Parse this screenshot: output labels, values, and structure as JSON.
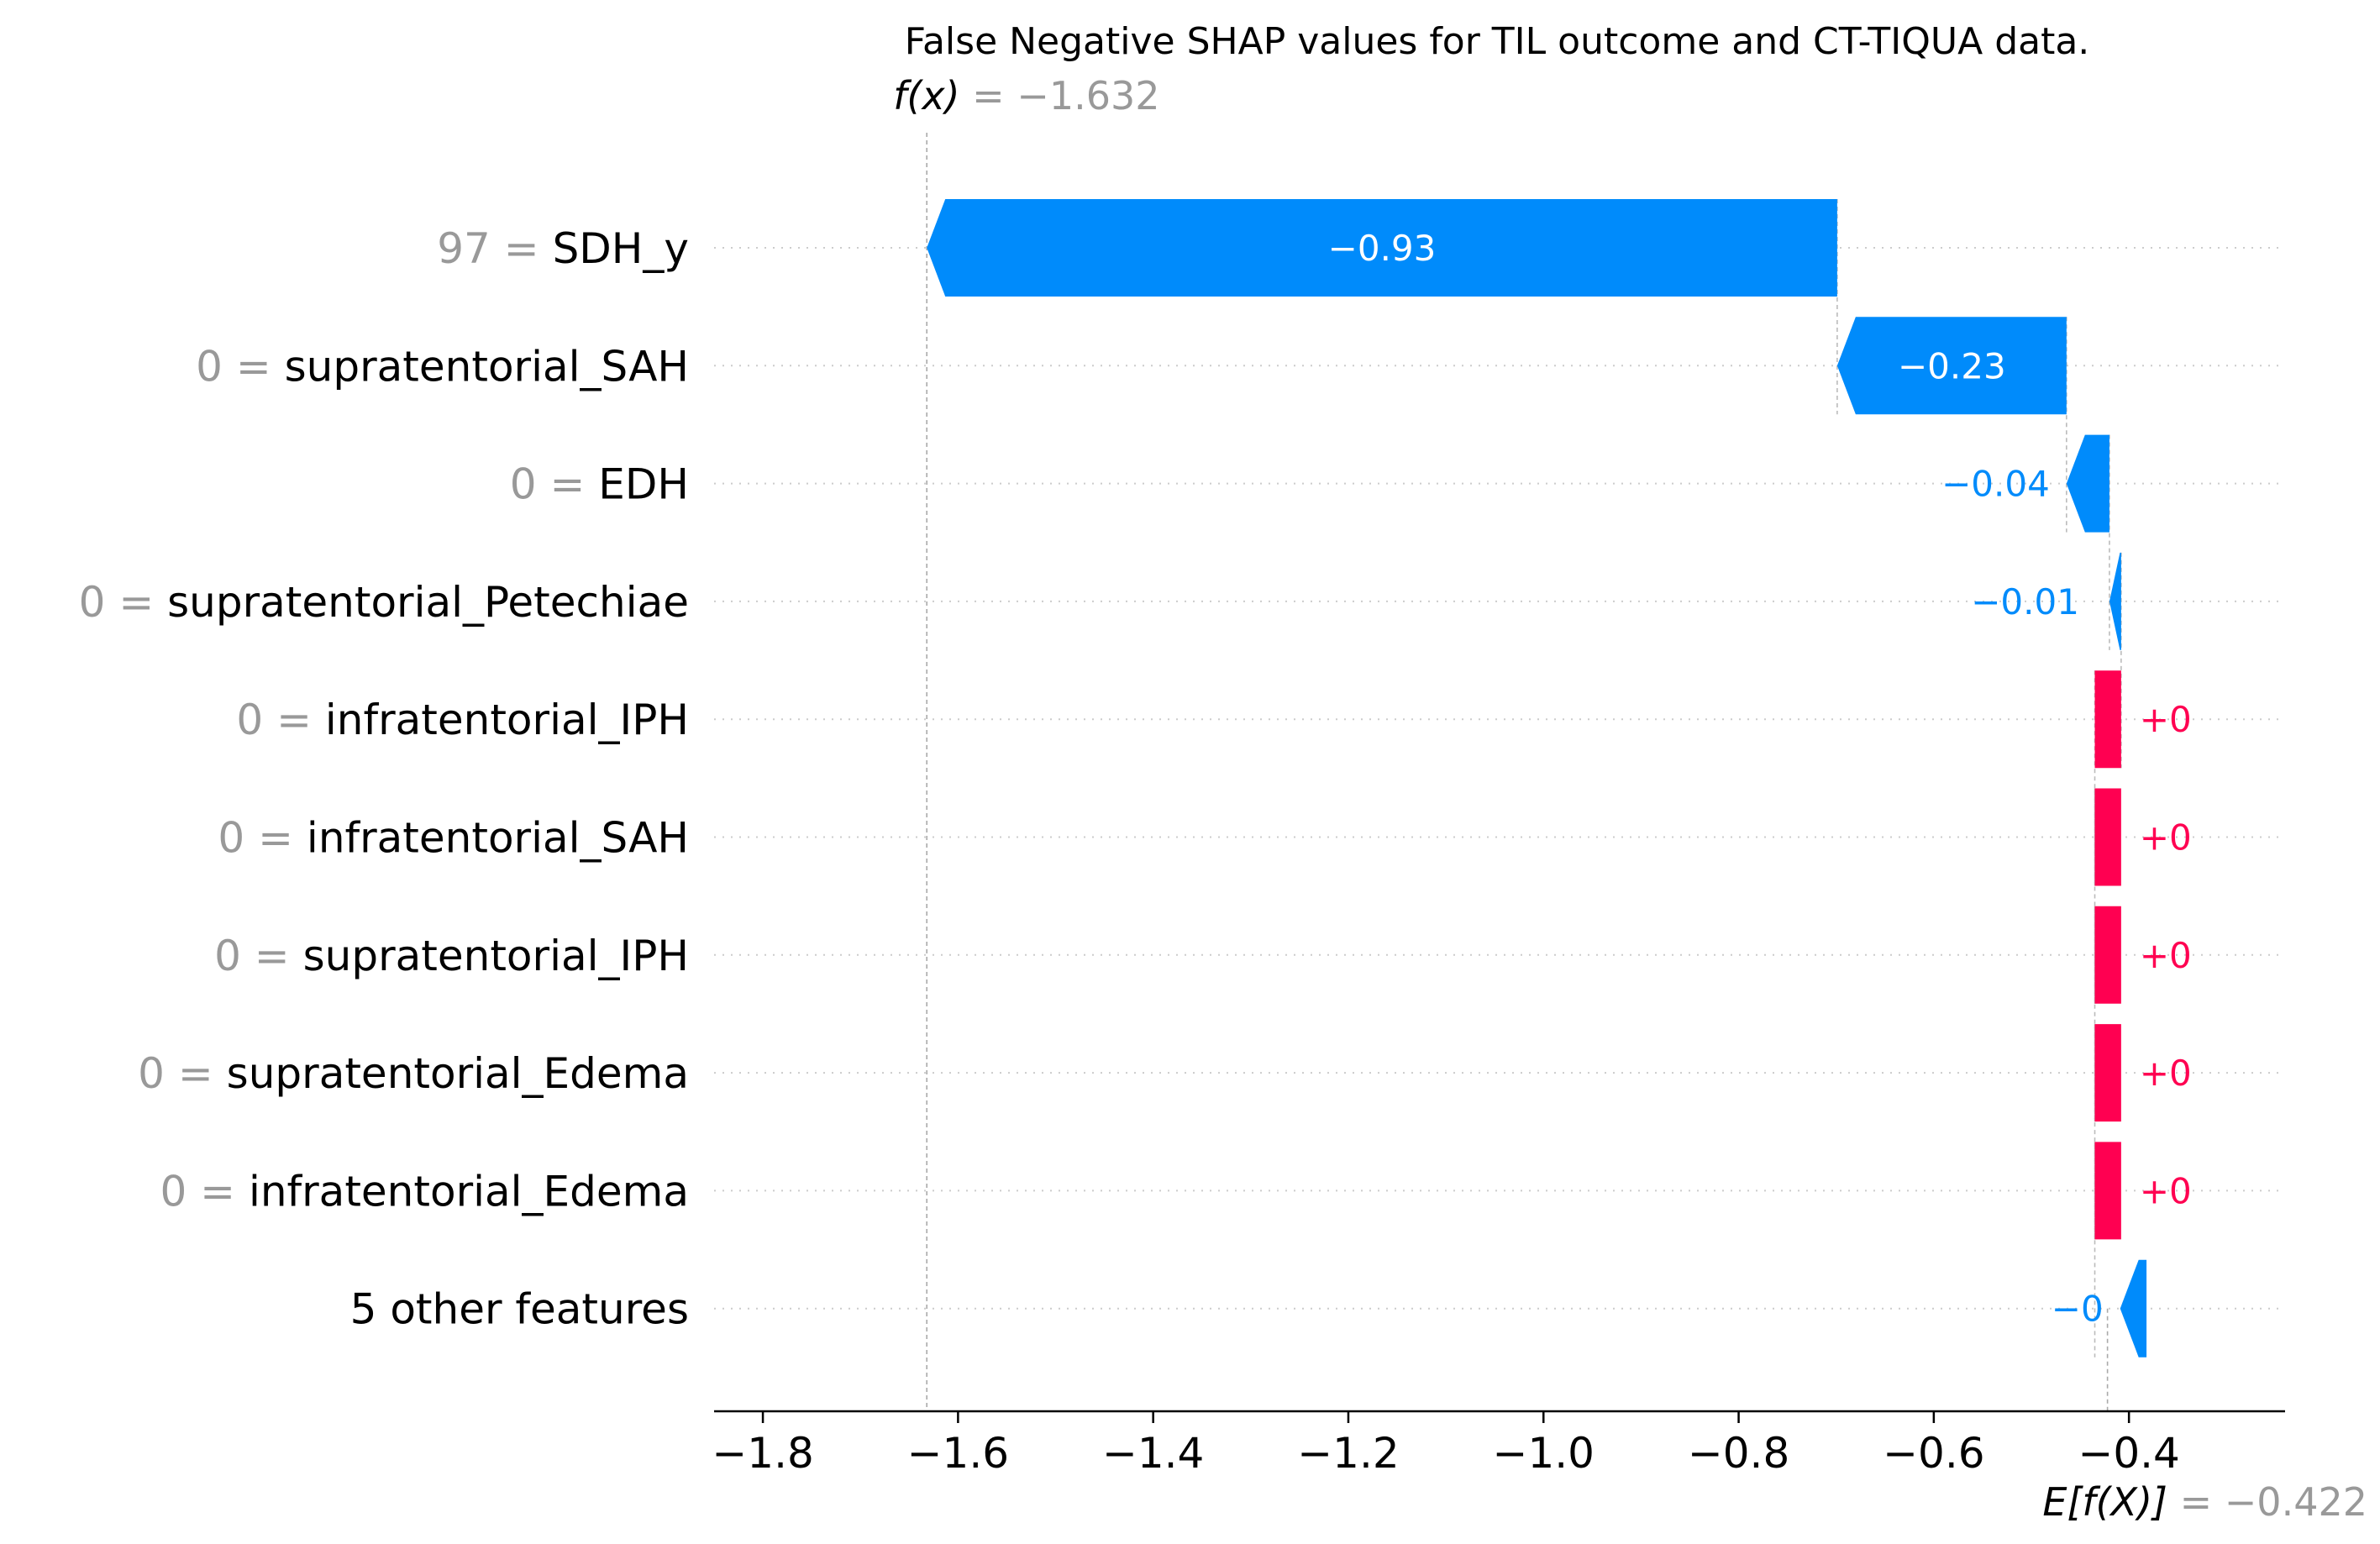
{
  "chart_data": {
    "type": "waterfall",
    "title": "False Negative SHAP values for TIL outcome and CT-TIQUA data.",
    "fx": {
      "label": "f(x)",
      "value_text": "= −1.632",
      "value": -1.632
    },
    "base": {
      "label": "E[f(X)]",
      "value_text": "= −0.422",
      "value": -0.422
    },
    "xlim": [
      -1.85,
      -0.24
    ],
    "xticks": [
      {
        "value": -1.8,
        "label": "−1.8"
      },
      {
        "value": -1.6,
        "label": "−1.6"
      },
      {
        "value": -1.4,
        "label": "−1.4"
      },
      {
        "value": -1.2,
        "label": "−1.2"
      },
      {
        "value": -1.0,
        "label": "−1.0"
      },
      {
        "value": -0.8,
        "label": "−0.8"
      },
      {
        "value": -0.6,
        "label": "−0.6"
      },
      {
        "value": -0.4,
        "label": "−0.4"
      }
    ],
    "features": [
      {
        "value_label": "97 =",
        "name": "SDH_y",
        "start": -0.699,
        "end": -1.632,
        "label": "−0.93",
        "label_inside": true
      },
      {
        "value_label": "0 =",
        "name": "supratentorial_SAH",
        "start": -0.464,
        "end": -0.699,
        "label": "−0.23",
        "label_inside": true
      },
      {
        "value_label": "0 =",
        "name": "EDH",
        "start": -0.42,
        "end": -0.464,
        "label": "−0.04",
        "label_inside": false
      },
      {
        "value_label": "0 =",
        "name": "supratentorial_Petechiae",
        "start": -0.408,
        "end": -0.42,
        "label": "−0.01",
        "label_inside": false
      },
      {
        "value_label": "0 =",
        "name": "infratentorial_IPH",
        "start": -0.435,
        "end": -0.408,
        "label": "+0",
        "label_inside": false
      },
      {
        "value_label": "0 =",
        "name": "infratentorial_SAH",
        "start": -0.435,
        "end": -0.408,
        "label": "+0",
        "label_inside": false
      },
      {
        "value_label": "0 =",
        "name": "supratentorial_IPH",
        "start": -0.435,
        "end": -0.408,
        "label": "+0",
        "label_inside": false
      },
      {
        "value_label": "0 =",
        "name": "supratentorial_Edema",
        "start": -0.435,
        "end": -0.408,
        "label": "+0",
        "label_inside": false
      },
      {
        "value_label": "0 =",
        "name": "infratentorial_Edema",
        "start": -0.435,
        "end": -0.408,
        "label": "+0",
        "label_inside": false
      },
      {
        "value_label": "",
        "name": "5 other features",
        "start": -0.382,
        "end": -0.409,
        "label": "−0",
        "label_inside": false
      }
    ],
    "colors": {
      "positive": "#ff0051",
      "negative": "#008bfb",
      "grey_text": "#999999",
      "axis": "#000000"
    }
  }
}
